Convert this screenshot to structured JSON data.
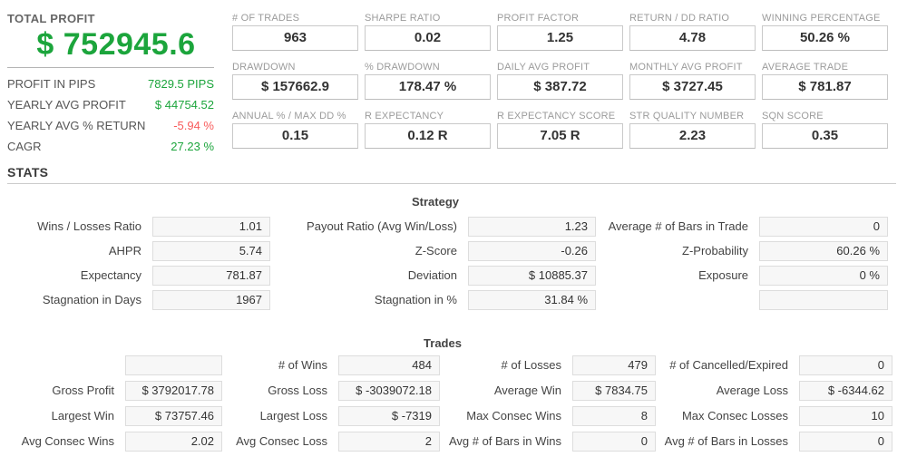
{
  "colors": {
    "accent_green": "#1ca53c",
    "negative_red": "#f85b5b"
  },
  "summary": {
    "title": "TOTAL PROFIT",
    "total_profit": "$ 752945.6",
    "rows": [
      {
        "label": "PROFIT IN PIPS",
        "value": "7829.5 PIPS",
        "color": "green"
      },
      {
        "label": "YEARLY AVG PROFIT",
        "value": "$ 44754.52",
        "color": "green"
      },
      {
        "label": "YEARLY AVG % RETURN",
        "value": "-5.94 %",
        "color": "red"
      },
      {
        "label": "CAGR",
        "value": "27.23 %",
        "color": "green"
      }
    ]
  },
  "kpis": [
    {
      "label": "# OF TRADES",
      "value": "963"
    },
    {
      "label": "SHARPE RATIO",
      "value": "0.02"
    },
    {
      "label": "PROFIT FACTOR",
      "value": "1.25"
    },
    {
      "label": "RETURN / DD RATIO",
      "value": "4.78"
    },
    {
      "label": "WINNING PERCENTAGE",
      "value": "50.26 %"
    },
    {
      "label": "DRAWDOWN",
      "value": "$ 157662.9"
    },
    {
      "label": "% DRAWDOWN",
      "value": "178.47 %"
    },
    {
      "label": "DAILY AVG PROFIT",
      "value": "$ 387.72"
    },
    {
      "label": "MONTHLY AVG PROFIT",
      "value": "$ 3727.45"
    },
    {
      "label": "AVERAGE TRADE",
      "value": "$ 781.87"
    },
    {
      "label": "ANNUAL % / MAX DD %",
      "value": "0.15"
    },
    {
      "label": "R EXPECTANCY",
      "value": "0.12 R"
    },
    {
      "label": "R EXPECTANCY SCORE",
      "value": "7.05 R"
    },
    {
      "label": "STR QUALITY NUMBER",
      "value": "2.23"
    },
    {
      "label": "SQN SCORE",
      "value": "0.35"
    }
  ],
  "stats_header": "STATS",
  "strategy": {
    "title": "Strategy",
    "cells": [
      {
        "label": "Wins / Losses Ratio",
        "value": "1.01"
      },
      {
        "label": "Payout Ratio (Avg Win/Loss)",
        "value": "1.23"
      },
      {
        "label": "Average # of Bars in Trade",
        "value": "0"
      },
      {
        "label": "AHPR",
        "value": "5.74"
      },
      {
        "label": "Z-Score",
        "value": "-0.26"
      },
      {
        "label": "Z-Probability",
        "value": "60.26 %"
      },
      {
        "label": "Expectancy",
        "value": "781.87"
      },
      {
        "label": "Deviation",
        "value": "$ 10885.37"
      },
      {
        "label": "Exposure",
        "value": "0 %"
      },
      {
        "label": "Stagnation in Days",
        "value": "1967"
      },
      {
        "label": "Stagnation in %",
        "value": "31.84 %"
      },
      {
        "label": "",
        "value": ""
      }
    ]
  },
  "trades": {
    "title": "Trades",
    "cells": [
      {
        "label": "",
        "value": ""
      },
      {
        "label": "# of Wins",
        "value": "484"
      },
      {
        "label": "# of Losses",
        "value": "479"
      },
      {
        "label": "# of Cancelled/Expired",
        "value": "0"
      },
      {
        "label": "Gross Profit",
        "value": "$ 3792017.78"
      },
      {
        "label": "Gross Loss",
        "value": "$ -3039072.18"
      },
      {
        "label": "Average Win",
        "value": "$ 7834.75"
      },
      {
        "label": "Average Loss",
        "value": "$ -6344.62"
      },
      {
        "label": "Largest Win",
        "value": "$ 73757.46"
      },
      {
        "label": "Largest Loss",
        "value": "$ -7319"
      },
      {
        "label": "Max Consec Wins",
        "value": "8"
      },
      {
        "label": "Max Consec Losses",
        "value": "10"
      },
      {
        "label": "Avg Consec Wins",
        "value": "2.02"
      },
      {
        "label": "Avg Consec Loss",
        "value": "2"
      },
      {
        "label": "Avg # of Bars in Wins",
        "value": "0"
      },
      {
        "label": "Avg # of Bars in Losses",
        "value": "0"
      }
    ]
  }
}
